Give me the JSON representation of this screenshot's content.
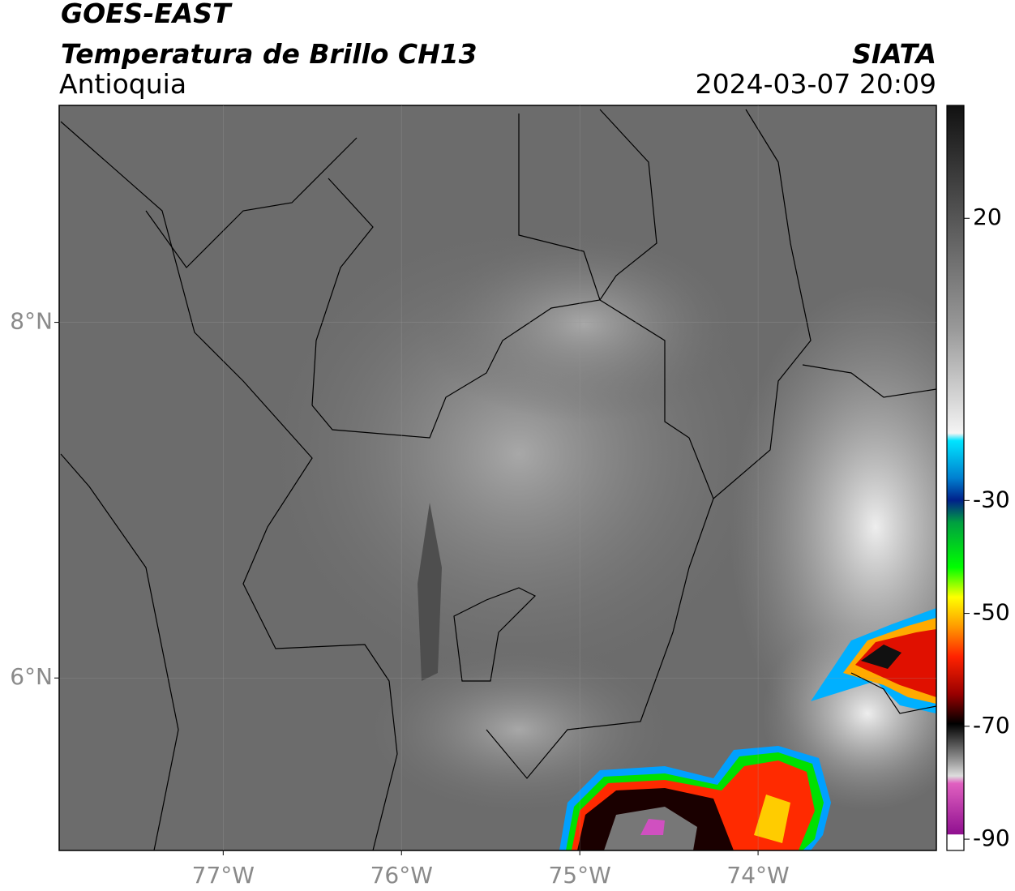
{
  "header": {
    "title": "GOES-EAST",
    "subtitle": "Temperatura de Brillo CH13",
    "region": "Antioquia",
    "source": "SIATA",
    "datetime": "2024-03-07 20:09"
  },
  "map": {
    "xlim": [
      -77.92,
      -73.0
    ],
    "ylim": [
      5.03,
      9.22
    ],
    "grid": true,
    "xticks": [
      {
        "value": -77,
        "label": "77°W"
      },
      {
        "value": -76,
        "label": "76°W"
      },
      {
        "value": -75,
        "label": "75°W"
      },
      {
        "value": -74,
        "label": "74°W"
      }
    ],
    "yticks": [
      {
        "value": 8,
        "label": "8°N"
      },
      {
        "value": 6,
        "label": "6°N"
      }
    ]
  },
  "colorbar": {
    "range": [
      -92,
      40
    ],
    "ticks": [
      20,
      -30,
      -50,
      -70,
      -90
    ]
  }
}
